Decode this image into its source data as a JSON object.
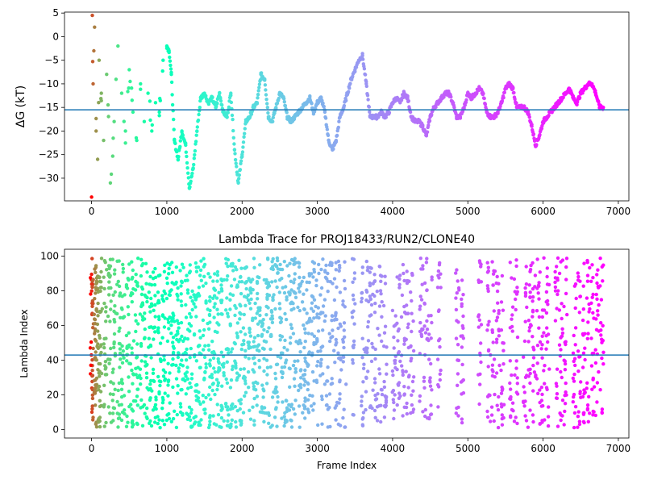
{
  "chart_data": [
    {
      "type": "scatter",
      "title": "",
      "ylabel": "ΔG (kT)",
      "xlabel": "",
      "xlim": [
        -360,
        7140
      ],
      "ylim": [
        -34.8,
        5.2
      ],
      "xticks": [
        0,
        1000,
        2000,
        3000,
        4000,
        5000,
        6000,
        7000
      ],
      "yticks": [
        5,
        0,
        -5,
        -10,
        -15,
        -20,
        -25,
        -30
      ],
      "xtick_labels": [
        "0",
        "1000",
        "2000",
        "3000",
        "4000",
        "5000",
        "6000",
        "7000"
      ],
      "ytick_labels": [
        "5",
        "0",
        "−5",
        "−10",
        "−15",
        "−20",
        "−25",
        "−30"
      ],
      "grid": false,
      "colormap": "rainbow (red at frame 0 → violet at last frame)",
      "reference_line": {
        "y": -15.5,
        "color": "#1f77b4"
      },
      "series": [
        {
          "x": [
            0,
            10,
            20,
            30,
            40,
            60,
            80,
            100,
            130,
            160,
            200,
            250,
            300,
            350,
            400,
            450,
            500,
            550,
            600,
            650,
            700,
            750,
            800,
            850,
            900,
            950,
            1000,
            1030,
            1060,
            1100,
            1150,
            1200,
            1250,
            1300,
            1350,
            1400,
            1450,
            1500,
            1550,
            1600,
            1650,
            1700,
            1750,
            1800,
            1850,
            1900,
            1950,
            2000,
            2050,
            2100,
            2150,
            2200,
            2250,
            2300,
            2350,
            2400,
            2450,
            2500,
            2550,
            2600,
            2650,
            2700,
            2750,
            2800,
            2850,
            2900,
            2950,
            3000,
            3050,
            3100,
            3150,
            3200,
            3250,
            3300,
            3350,
            3400,
            3450,
            3500,
            3550,
            3600,
            3650,
            3700,
            3750,
            3800,
            3850,
            3900,
            3950,
            4000,
            4050,
            4100,
            4150,
            4200,
            4250,
            4300,
            4350,
            4400,
            4450,
            4500,
            4550,
            4600,
            4650,
            4700,
            4750,
            4800,
            4850,
            4900,
            4950,
            5000,
            5050,
            5100,
            5150,
            5200,
            5250,
            5300,
            5350,
            5400,
            5450,
            5500,
            5550,
            5600,
            5650,
            5700,
            5750,
            5800,
            5850,
            5900,
            5950,
            6000,
            6050,
            6100,
            6150,
            6200,
            6250,
            6300,
            6350,
            6400,
            6450,
            6500,
            6550,
            6600,
            6650,
            6700,
            6750,
            6800
          ],
          "y": [
            -34,
            4.5,
            -10,
            -3,
            2,
            -20,
            -26,
            -5,
            -12,
            -22,
            -8,
            -31,
            -18,
            -2,
            -12,
            -20,
            -7,
            -16,
            -22,
            -10,
            -18,
            -12,
            -20,
            -14,
            -16,
            -5,
            -2,
            -3,
            -8,
            -22,
            -26,
            -20,
            -23,
            -32,
            -28,
            -20,
            -13,
            -12,
            -14,
            -13,
            -15,
            -12,
            -16,
            -17,
            -12,
            -24,
            -31,
            -25,
            -18,
            -17,
            -15,
            -14,
            -8,
            -9,
            -17,
            -18,
            -15,
            -12,
            -13,
            -17,
            -18,
            -17,
            -16,
            -15,
            -14,
            -13,
            -16,
            -14,
            -13,
            -16,
            -22,
            -24,
            -22,
            -17,
            -15,
            -12,
            -9,
            -7,
            -5,
            -4,
            -10,
            -17,
            -17,
            -17,
            -16,
            -17,
            -16,
            -14,
            -13,
            -14,
            -12,
            -13,
            -17,
            -18,
            -18,
            -19,
            -21,
            -17,
            -15,
            -14,
            -13,
            -12,
            -12,
            -14,
            -17,
            -17,
            -15,
            -12,
            -13,
            -12,
            -11,
            -12,
            -16,
            -17,
            -17,
            -16,
            -14,
            -11,
            -10,
            -11,
            -15,
            -15,
            -15,
            -16,
            -19,
            -23,
            -21,
            -18,
            -17,
            -16,
            -15,
            -14,
            -13,
            -12,
            -11,
            -13,
            -14,
            -12,
            -11,
            -10,
            -10,
            -12,
            -15,
            -15
          ]
        }
      ]
    },
    {
      "type": "scatter",
      "title": "Lambda Trace for PROJ18433/RUN2/CLONE40",
      "xlabel": "Frame Index",
      "ylabel": "Lambda Index",
      "xlim": [
        -360,
        7140
      ],
      "ylim": [
        -4.9,
        104
      ],
      "xticks": [
        0,
        1000,
        2000,
        3000,
        4000,
        5000,
        6000,
        7000
      ],
      "yticks": [
        0,
        20,
        40,
        60,
        80,
        100
      ],
      "xtick_labels": [
        "0",
        "1000",
        "2000",
        "3000",
        "4000",
        "5000",
        "6000",
        "7000"
      ],
      "ytick_labels": [
        "0",
        "20",
        "40",
        "60",
        "80",
        "100"
      ],
      "grid": false,
      "colormap": "rainbow (red at frame 0 → violet at last frame)",
      "reference_line": {
        "y": 43,
        "color": "#1f77b4"
      },
      "series": [
        {
          "x_range": [
            0,
            6800
          ],
          "y_range": [
            1,
            99
          ],
          "description_values": "dense lambda-index trace spanning 0–99 across all frames"
        }
      ]
    }
  ]
}
